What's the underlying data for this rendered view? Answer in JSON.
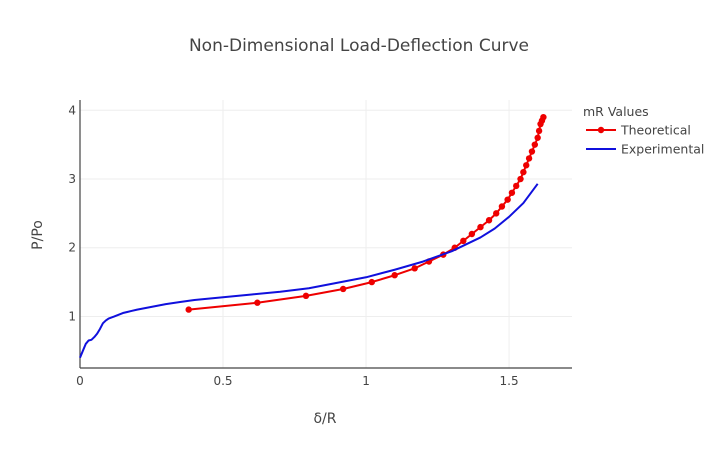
{
  "chart_data": {
    "type": "line",
    "title": "Non-Dimensional Load-Deflection Curve",
    "xlabel": "δ/R",
    "ylabel": "P/Po",
    "xlim": [
      0,
      1.72
    ],
    "ylim": [
      0.25,
      4.15
    ],
    "x_ticks": [
      0,
      0.5,
      1,
      1.5
    ],
    "x_tick_labels": [
      "0",
      "0.5",
      "1",
      "1.5"
    ],
    "y_ticks": [
      1,
      2,
      3,
      4
    ],
    "y_tick_labels": [
      "1",
      "2",
      "3",
      "4"
    ],
    "grid": true,
    "legend": {
      "title": "mR Values",
      "position": "top-right"
    },
    "series": [
      {
        "name": "Theoretical",
        "color": "#ee0000",
        "markers": true,
        "x": [
          0.38,
          0.62,
          0.79,
          0.92,
          1.02,
          1.1,
          1.17,
          1.22,
          1.27,
          1.31,
          1.34,
          1.37,
          1.4,
          1.43,
          1.455,
          1.475,
          1.495,
          1.51,
          1.525,
          1.54,
          1.55,
          1.56,
          1.57,
          1.58,
          1.59,
          1.6,
          1.605,
          1.61,
          1.615,
          1.62
        ],
        "y": [
          1.1,
          1.2,
          1.3,
          1.4,
          1.5,
          1.6,
          1.7,
          1.8,
          1.9,
          2.0,
          2.1,
          2.2,
          2.3,
          2.4,
          2.5,
          2.6,
          2.7,
          2.8,
          2.9,
          3.0,
          3.1,
          3.2,
          3.3,
          3.4,
          3.5,
          3.6,
          3.7,
          3.8,
          3.85,
          3.9
        ]
      },
      {
        "name": "Experimental",
        "color": "#1010dd",
        "markers": false,
        "x": [
          0.0,
          0.01,
          0.02,
          0.03,
          0.04,
          0.05,
          0.06,
          0.07,
          0.08,
          0.09,
          0.1,
          0.12,
          0.15,
          0.18,
          0.2,
          0.25,
          0.3,
          0.35,
          0.4,
          0.5,
          0.6,
          0.7,
          0.8,
          0.9,
          1.0,
          1.1,
          1.2,
          1.3,
          1.35,
          1.4,
          1.45,
          1.5,
          1.55,
          1.6
        ],
        "y": [
          0.4,
          0.5,
          0.6,
          0.65,
          0.66,
          0.7,
          0.75,
          0.82,
          0.9,
          0.94,
          0.97,
          1.0,
          1.05,
          1.08,
          1.1,
          1.14,
          1.18,
          1.21,
          1.24,
          1.28,
          1.32,
          1.36,
          1.41,
          1.49,
          1.57,
          1.68,
          1.8,
          1.95,
          2.05,
          2.15,
          2.28,
          2.45,
          2.65,
          2.93
        ]
      }
    ]
  }
}
